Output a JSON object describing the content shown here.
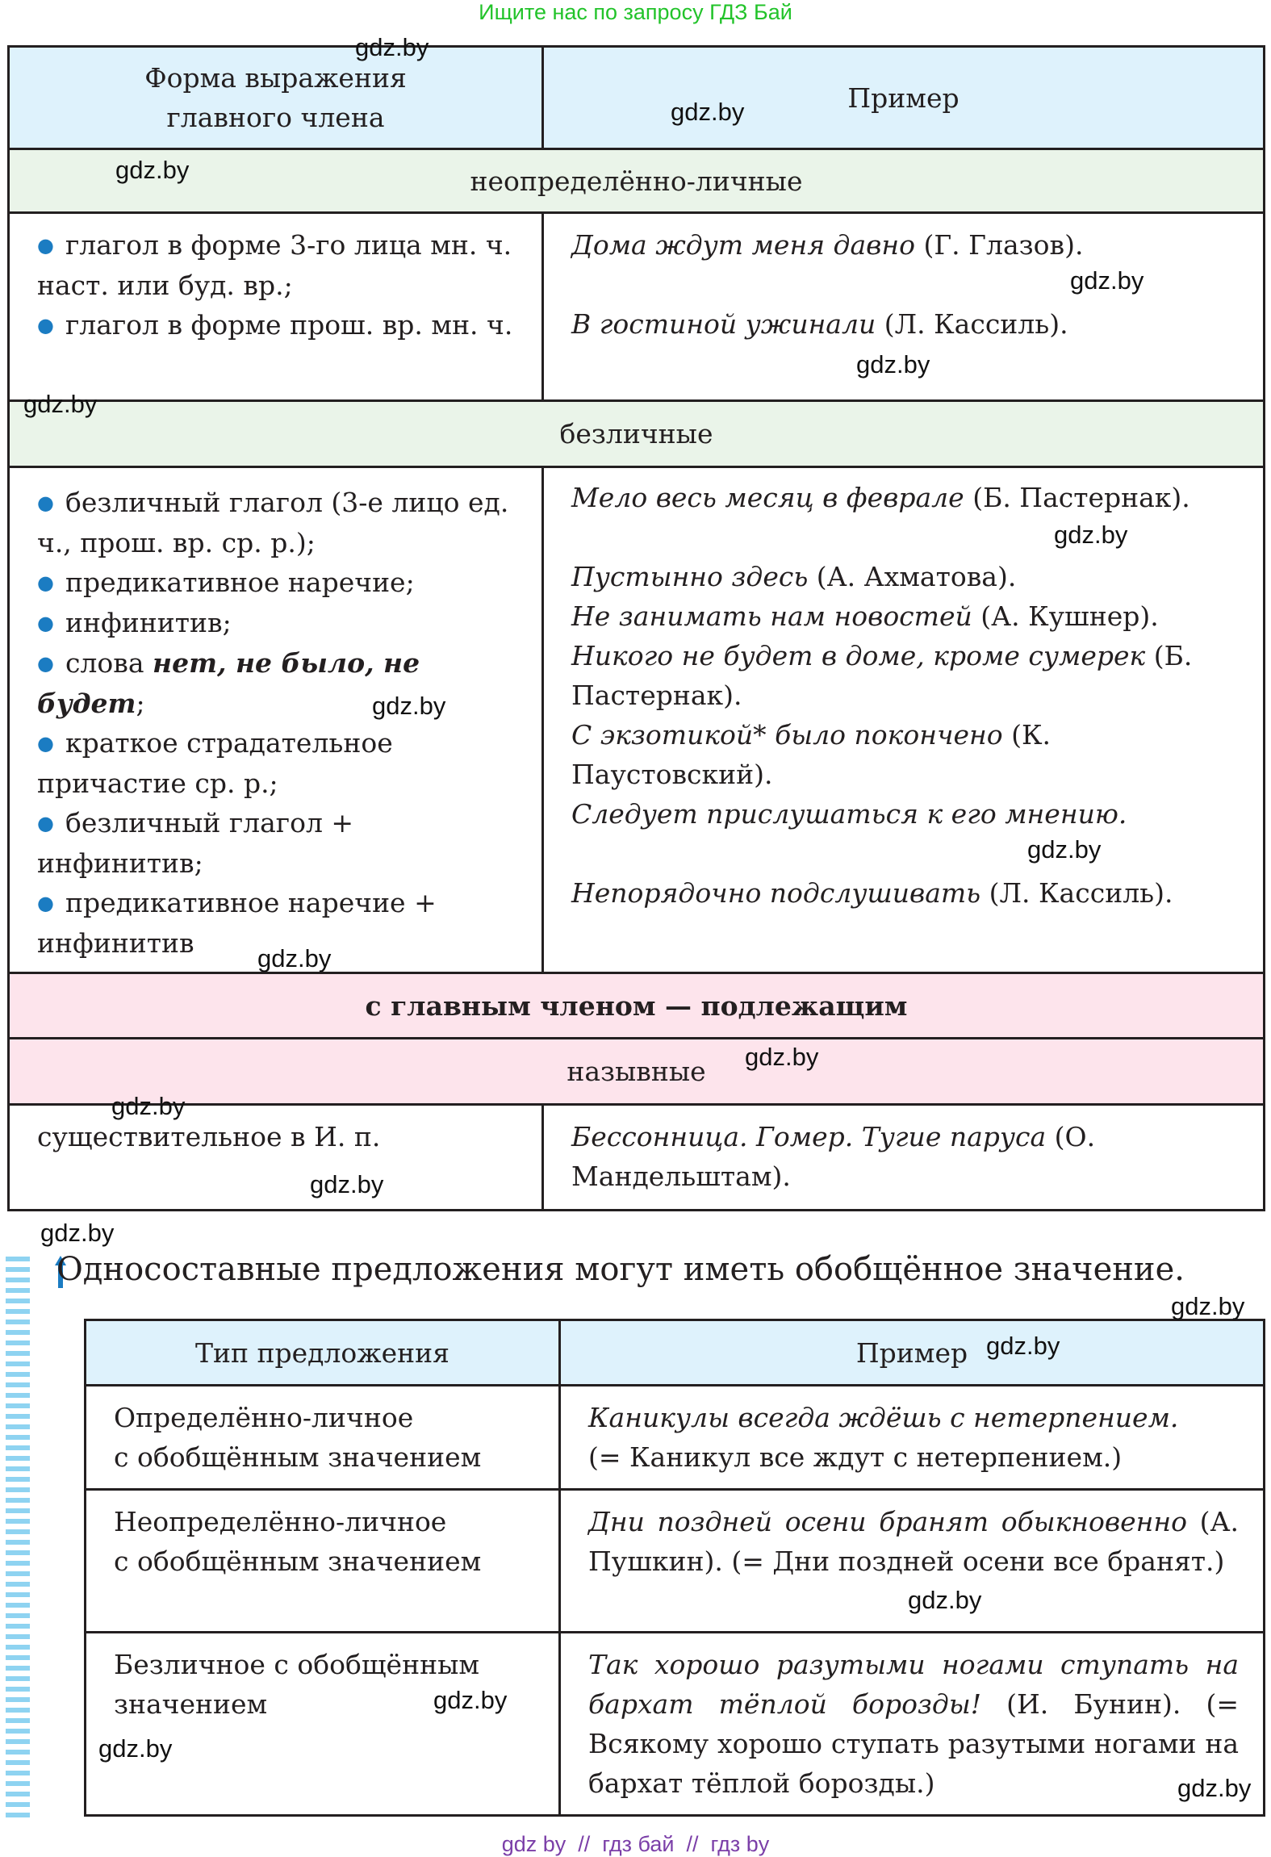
{
  "top_note": "Ищите нас по запросу ГДЗ Бай",
  "table1": {
    "header": {
      "form": "Форма выражения главного члена",
      "example": "Пример"
    },
    "section_indefinite": "неопределённо-личные",
    "row_indefinite": {
      "forms": [
        "глагол в форме 3-го лица мн. ч. наст. или буд. вр.;",
        "глагол в форме прош. вр. мн. ч."
      ],
      "examples": [
        {
          "italic": "Дома ждут меня давно",
          "normal": " (Г. Глазов)."
        },
        {
          "italic": "В гостиной ужинали",
          "normal": " (Л. Кассиль)."
        }
      ]
    },
    "section_impersonal": "безличные",
    "row_impersonal": {
      "forms": [
        "безличный глагол (3-е лицо ед. ч., прош. вр. ср. р.);",
        "предикативное наречие;",
        "инфинитив;",
        {
          "pre": "слова ",
          "bold": "нет, не было, не будет",
          "post": ";"
        },
        "краткое страдательное причастие ср. р.;",
        "безличный глагол + инфинитив;",
        "предикативное наречие + инфинитив"
      ],
      "examples": [
        {
          "italic": "Мело весь месяц в феврале",
          "normal": " (Б. Пастернак)."
        },
        {
          "italic": "Пустынно здесь",
          "normal": " (А. Ахматова)."
        },
        {
          "italic": "Не занимать нам новостей",
          "normal": " (А. Кушнер)."
        },
        {
          "italic": "Никого не будет в доме, кроме сумерек",
          "normal": " (Б. Пастернак)."
        },
        {
          "italic": "С экзотикой* было покончено",
          "normal": " (К. Паустовский)."
        },
        {
          "italic": "Следует прислушаться к его мнению.",
          "normal": ""
        },
        {
          "italic": "Непорядочно подслушивать",
          "normal": " (Л. Кассиль)."
        }
      ]
    },
    "section_subject": "с главным членом — подлежащим",
    "section_nominative": "назывные",
    "row_nominative": {
      "form": "существительное в И. п.",
      "example": {
        "italic": "Бессонница. Гомер. Тугие паруса",
        "normal": " (О. Мандельштам)."
      }
    }
  },
  "heading": "Односоставные предложения могут иметь обобщённое значение.",
  "table2": {
    "header": {
      "type": "Тип предложения",
      "example": "Пример"
    },
    "rows": [
      {
        "type": [
          "Определённо-личное",
          "с обобщённым значением"
        ],
        "italic": "Каникулы всегда ждёшь с нетерпением.",
        "normal": "(= Каникул все ждут с нетерпением.)"
      },
      {
        "type": [
          "Неопределённо-личное",
          "с обобщённым значением"
        ],
        "italic": "Дни поздней осени бранят обыкновенно",
        "normal": " (А. Пушкин). (= Дни поздней осени все бранят.)"
      },
      {
        "type": [
          "Безличное с обобщённым",
          "значением"
        ],
        "italic": "Так хорошо разутыми ногами ступать на бархат тёплой борозды!",
        "normal": " (И. Бунин). (= Всякому хорошо ступать разутыми ногами на бархат тёплой борозды.)"
      }
    ]
  },
  "watermark": "gdz.by",
  "footer": "gdz by  //  гдз бай  //  гдз by",
  "colors": {
    "header_bg": "#def2fc",
    "green_bg": "#eaf4e9",
    "pink_bg": "#fde4ec",
    "bullet": "#1b7cc2",
    "top_note": "#22c32a",
    "footer": "#7b3fa8"
  }
}
